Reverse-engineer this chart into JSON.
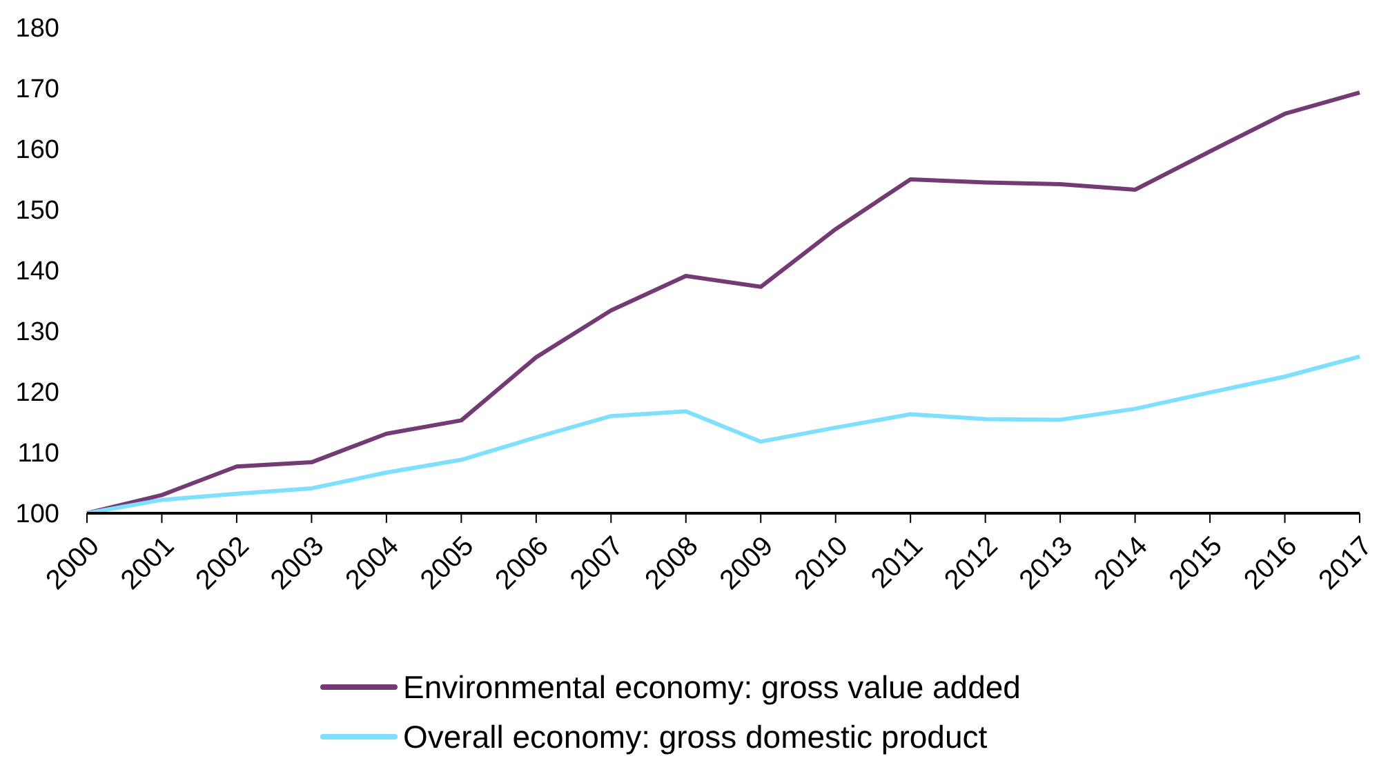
{
  "chart_data": {
    "type": "line",
    "categories": [
      "2000",
      "2001",
      "2002",
      "2003",
      "2004",
      "2005",
      "2006",
      "2007",
      "2008",
      "2009",
      "2010",
      "2011",
      "2012",
      "2013",
      "2014",
      "2015",
      "2016",
      "2017"
    ],
    "series": [
      {
        "name": "Environmental economy: gross value added",
        "color": "#733a74",
        "values": [
          100,
          103,
          107.7,
          108.4,
          113.1,
          115.3,
          125.7,
          133.4,
          139.1,
          137.3,
          146.8,
          155,
          154.5,
          154.2,
          153.3,
          159.6,
          165.8,
          169.3
        ]
      },
      {
        "name": "Overall economy: gross domestic product",
        "color": "#7fe0fd",
        "values": [
          100,
          102.2,
          103.2,
          104.1,
          106.7,
          108.8,
          112.5,
          116,
          116.8,
          111.8,
          114.1,
          116.3,
          115.5,
          115.4,
          117.2,
          119.9,
          122.5,
          125.8
        ]
      }
    ],
    "ylim": [
      100,
      180
    ],
    "yticks": [
      100,
      110,
      120,
      130,
      140,
      150,
      160,
      170,
      180
    ],
    "grid": false,
    "legend": "bottom",
    "marker": "none",
    "line_style": "solid"
  }
}
